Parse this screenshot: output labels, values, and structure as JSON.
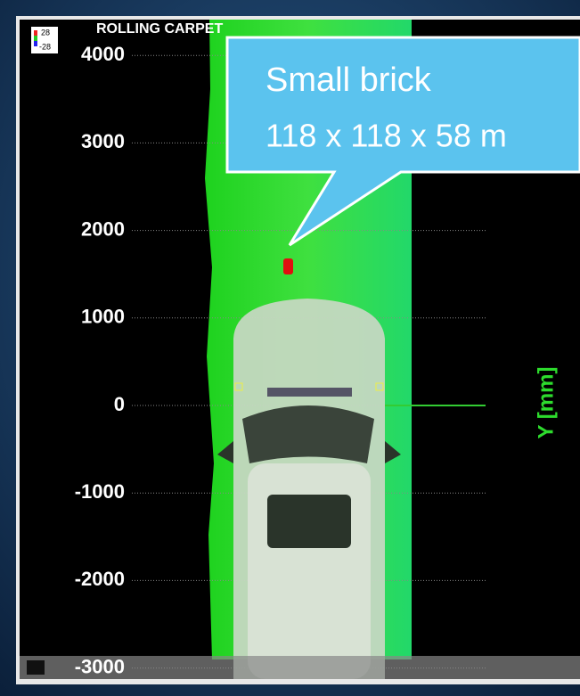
{
  "title": "ROLLING CARPET",
  "colorbar": {
    "max_label": "28",
    "min_label": "-28"
  },
  "axis": {
    "label": "Y [mm]",
    "ticks": [
      4000,
      3000,
      2000,
      1000,
      0,
      -1000,
      -2000,
      -3000
    ]
  },
  "callout": {
    "line1": "Small brick",
    "line2": "118 x 118 x 58 m"
  }
}
